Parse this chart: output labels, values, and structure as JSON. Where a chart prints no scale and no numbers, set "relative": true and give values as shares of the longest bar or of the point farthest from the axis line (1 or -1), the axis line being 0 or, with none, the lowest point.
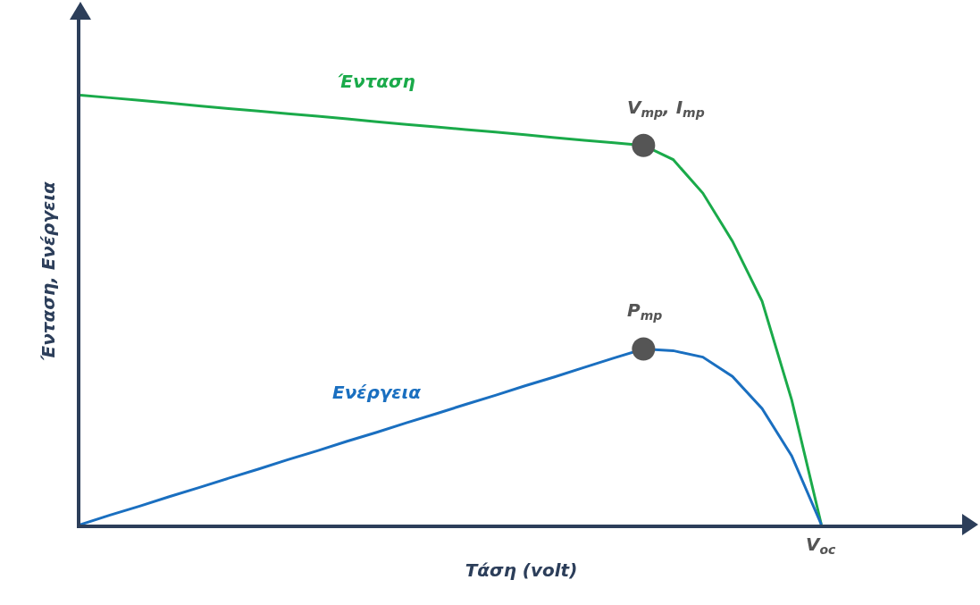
{
  "chart_data": {
    "type": "line",
    "relative": true,
    "xlabel": "Τάση (volt)",
    "ylabel": "Ένταση, Ενέργεια",
    "categories": [
      null,
      null,
      null,
      null,
      null,
      null,
      null,
      null,
      null,
      null,
      null,
      null,
      null,
      null,
      null,
      null,
      null,
      null,
      null,
      null,
      null,
      null,
      null,
      null,
      null,
      null
    ],
    "series": [
      {
        "name": "Ένταση",
        "color": "#1aaa4a",
        "values": [
          1,
          0.994,
          0.988,
          0.982,
          0.975,
          0.969,
          0.963,
          0.957,
          0.951,
          0.945,
          0.938,
          0.932,
          0.926,
          0.92,
          0.914,
          0.908,
          0.901,
          0.895,
          0.889,
          0.883,
          0.85,
          0.772,
          0.66,
          0.52,
          0.29,
          0
        ]
      },
      {
        "name": "Ενέργεια",
        "color": "#1a6fc0",
        "values": [
          0,
          0.022,
          0.043,
          0.065,
          0.086,
          0.108,
          0.129,
          0.151,
          0.172,
          0.194,
          0.215,
          0.237,
          0.258,
          0.28,
          0.301,
          0.323,
          0.344,
          0.366,
          0.388,
          0.409,
          0.405,
          0.39,
          0.345,
          0.27,
          0.16,
          0
        ]
      }
    ],
    "annotations": [
      "V$_{mp}$, I$_{mp}$",
      "P$_{mp}$",
      "V$_{oc}$"
    ],
    "grid": false
  }
}
